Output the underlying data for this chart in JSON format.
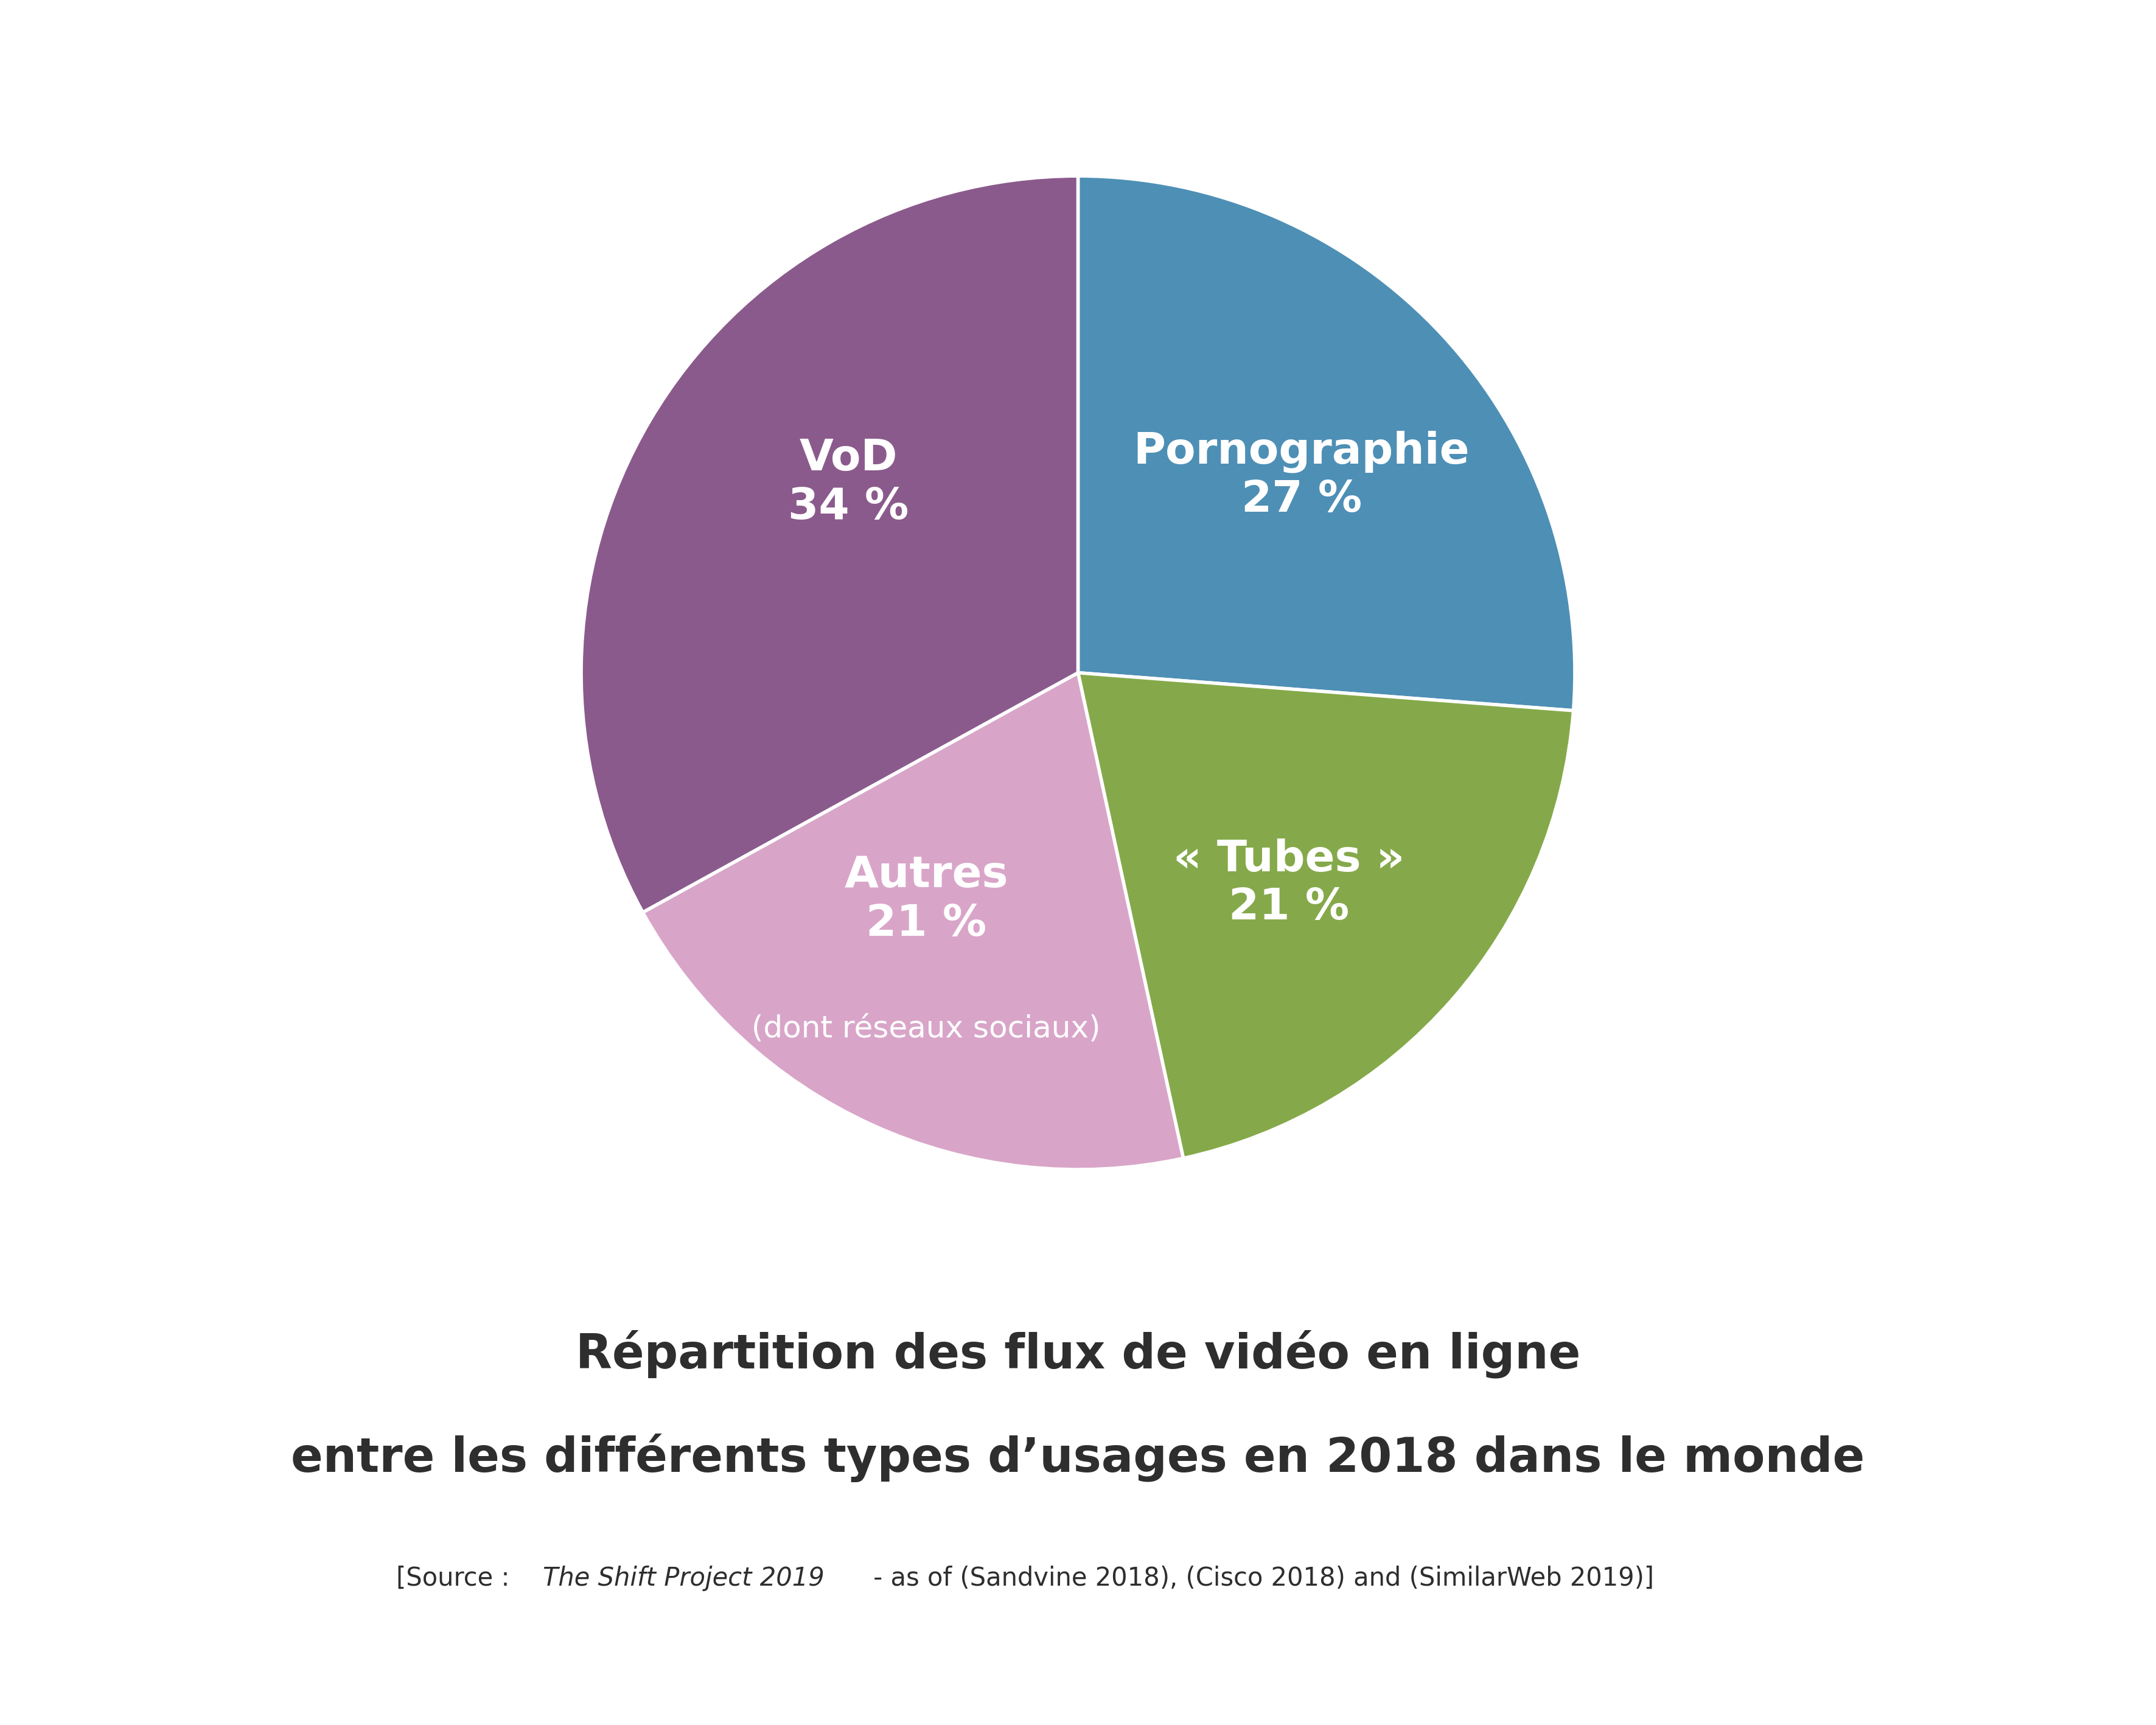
{
  "slices": [
    {
      "label_main": "Pornographie\n27 %",
      "label_sub": null,
      "value": 27,
      "color": "#4E8FB5"
    },
    {
      "label_main": "« Tubes »\n21 %",
      "label_sub": null,
      "value": 21,
      "color": "#85A94A"
    },
    {
      "label_main": "Autres\n21 %",
      "label_sub": "(dont réseaux sociaux)",
      "value": 21,
      "color": "#D8A5C8"
    },
    {
      "label_main": "VoD\n34 %",
      "label_sub": null,
      "value": 34,
      "color": "#8B5A8C"
    }
  ],
  "title_line1": "Répartition des flux de vidéo en ligne",
  "title_line2": "entre les différents types d’usages en 2018 dans le monde",
  "source_prefix": "[Source : ",
  "source_italic": "The Shift Project 2019",
  "source_suffix": " - as of (Sandvine 2018), (Cisco 2018) and (SimilarWeb 2019)]",
  "background_color": "#FFFFFF",
  "label_color": "#FFFFFF",
  "title_color": "#2E2E2E",
  "source_color": "#2E2E2E",
  "title_fontsize": 56,
  "source_fontsize": 30,
  "label_fontsize_main": 52,
  "label_fontsize_sub": 36,
  "wedge_edgecolor": "#FFFFFF",
  "wedge_linewidth": 4
}
